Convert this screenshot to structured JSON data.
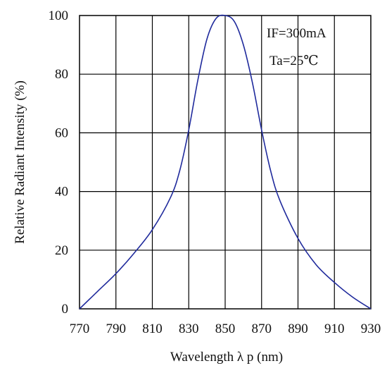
{
  "chart_data": {
    "type": "line",
    "title": "",
    "xlabel": "Wavelength λ p (nm)",
    "ylabel": "Relative Radiant Intensity (%)",
    "xlim": [
      770,
      930
    ],
    "ylim": [
      0,
      100
    ],
    "xticks": [
      770,
      790,
      810,
      830,
      850,
      870,
      890,
      910,
      930
    ],
    "yticks": [
      0,
      20,
      40,
      60,
      80,
      100
    ],
    "grid": true,
    "annotations": [
      "IF=300mA",
      "Ta=25℃"
    ],
    "colors": {
      "line": "#1f2a9c",
      "grid": "#000000"
    },
    "series": [
      {
        "x": [
          770,
          780,
          790,
          800,
          810,
          820,
          825,
          830,
          835,
          840,
          845,
          850,
          855,
          860,
          865,
          870,
          875,
          880,
          890,
          900,
          910,
          920,
          930
        ],
        "y": [
          0,
          6,
          12,
          19,
          27,
          38,
          47,
          61,
          78,
          92,
          99,
          100,
          98,
          90,
          77,
          61,
          47,
          37,
          24,
          15,
          9,
          4,
          0
        ]
      }
    ]
  }
}
